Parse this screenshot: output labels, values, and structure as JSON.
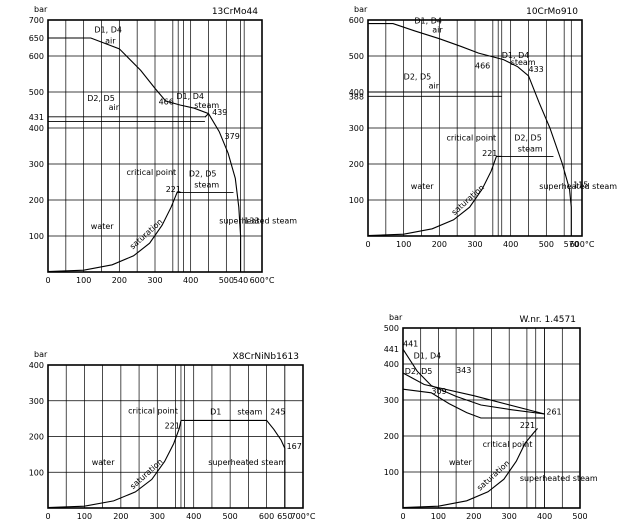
{
  "chart_data": [
    {
      "type": "line",
      "title": "13CrMo44",
      "ylabel": "bar",
      "xlim": [
        0,
        600
      ],
      "ylim": [
        0,
        700
      ],
      "x_ticks": [
        {
          "v": 0,
          "label": "0"
        },
        {
          "v": 100,
          "label": "100"
        },
        {
          "v": 200,
          "label": "200"
        },
        {
          "v": 300,
          "label": "300"
        },
        {
          "v": 400,
          "label": "400"
        },
        {
          "v": 500,
          "label": "500"
        },
        {
          "v": 540,
          "label": "540"
        },
        {
          "v": 600,
          "label": "600°C"
        }
      ],
      "y_ticks": [
        {
          "v": 100,
          "label": "100"
        },
        {
          "v": 200,
          "label": "200"
        },
        {
          "v": 300,
          "label": "300"
        },
        {
          "v": 400,
          "label": "400"
        },
        {
          "v": 431,
          "label": "431"
        },
        {
          "v": 500,
          "label": "500"
        },
        {
          "v": 600,
          "label": "600"
        },
        {
          "v": 650,
          "label": "650"
        },
        {
          "v": 700,
          "label": "700"
        }
      ],
      "grid_x": [
        0,
        50,
        100,
        150,
        200,
        250,
        300,
        350,
        400,
        450,
        500,
        550,
        600
      ],
      "grid_y": [
        0,
        100,
        200,
        300,
        400,
        500,
        600,
        700
      ],
      "extra_v": [
        365,
        380,
        540
      ],
      "series": [
        {
          "points": [
            [
              0,
              650
            ],
            [
              120,
              650
            ],
            [
              200,
              620
            ],
            [
              260,
              560
            ],
            [
              300,
              510
            ],
            [
              330,
              475
            ],
            [
              370,
              464
            ],
            [
              410,
              455
            ],
            [
              450,
              440
            ],
            [
              480,
              390
            ],
            [
              505,
              330
            ],
            [
              525,
              260
            ],
            [
              535,
              180
            ],
            [
              540,
              100
            ],
            [
              540,
              0
            ]
          ]
        },
        {
          "points": [
            [
              440,
              430
            ],
            [
              450,
              440
            ]
          ]
        }
      ],
      "saturation": [
        [
          0,
          1
        ],
        [
          100,
          5
        ],
        [
          180,
          20
        ],
        [
          240,
          45
        ],
        [
          285,
          80
        ],
        [
          320,
          130
        ],
        [
          345,
          180
        ],
        [
          362,
          221
        ],
        [
          374,
          221
        ]
      ],
      "hlines": [
        {
          "y": 431,
          "x1": 0,
          "x2": 440
        },
        {
          "y": 418,
          "x1": 0,
          "x2": 440
        },
        {
          "y": 221,
          "x1": 374,
          "x2": 520
        }
      ],
      "labels": [
        {
          "x": 130,
          "y": 665,
          "text": "D1, D4"
        },
        {
          "x": 160,
          "y": 635,
          "text": "air"
        },
        {
          "x": 110,
          "y": 475,
          "text": "D2, D5"
        },
        {
          "x": 170,
          "y": 450,
          "text": "air"
        },
        {
          "x": 310,
          "y": 465,
          "text": "466"
        },
        {
          "x": 360,
          "y": 480,
          "text": "D1, D4"
        },
        {
          "x": 410,
          "y": 455,
          "text": "steam"
        },
        {
          "x": 460,
          "y": 436,
          "text": "439"
        },
        {
          "x": 495,
          "y": 370,
          "text": "379"
        },
        {
          "x": 220,
          "y": 270,
          "text": "critical point"
        },
        {
          "x": 330,
          "y": 222,
          "text": "221"
        },
        {
          "x": 395,
          "y": 265,
          "text": "D2, D5"
        },
        {
          "x": 410,
          "y": 235,
          "text": "steam"
        },
        {
          "x": 480,
          "y": 135,
          "text": "superheated steam"
        },
        {
          "x": 120,
          "y": 120,
          "text": "water"
        },
        {
          "x": 550,
          "y": 135,
          "text": "133"
        }
      ],
      "sat_label": {
        "x": 280,
        "y": 100,
        "rot": -42,
        "text": "saturation"
      }
    },
    {
      "type": "line",
      "title": "10CrMo910",
      "ylabel": "bar",
      "xlim": [
        0,
        600
      ],
      "ylim": [
        0,
        600
      ],
      "x_ticks": [
        {
          "v": 0,
          "label": "0"
        },
        {
          "v": 100,
          "label": "100"
        },
        {
          "v": 200,
          "label": "200"
        },
        {
          "v": 300,
          "label": "300"
        },
        {
          "v": 400,
          "label": "400"
        },
        {
          "v": 500,
          "label": "500"
        },
        {
          "v": 570,
          "label": "570"
        },
        {
          "v": 600,
          "label": "600°C"
        }
      ],
      "y_ticks": [
        {
          "v": 100,
          "label": "100"
        },
        {
          "v": 200,
          "label": "200"
        },
        {
          "v": 300,
          "label": "300"
        },
        {
          "v": 388,
          "label": "388"
        },
        {
          "v": 400,
          "label": "400"
        },
        {
          "v": 500,
          "label": "500"
        },
        {
          "v": 600,
          "label": "600"
        }
      ],
      "grid_x": [
        0,
        50,
        100,
        150,
        200,
        250,
        300,
        350,
        400,
        450,
        500,
        550,
        600
      ],
      "grid_y": [
        0,
        100,
        200,
        300,
        400,
        500,
        600
      ],
      "extra_v": [
        365,
        375,
        570
      ],
      "series": [
        {
          "points": [
            [
              0,
              590
            ],
            [
              70,
              590
            ],
            [
              130,
              570
            ],
            [
              200,
              548
            ],
            [
              260,
              527
            ],
            [
              310,
              508
            ],
            [
              380,
              490
            ],
            [
              420,
              470
            ],
            [
              450,
              445
            ],
            [
              480,
              370
            ],
            [
              510,
              300
            ],
            [
              545,
              200
            ],
            [
              565,
              130
            ],
            [
              570,
              80
            ],
            [
              570,
              0
            ]
          ]
        }
      ],
      "saturation": [
        [
          0,
          1
        ],
        [
          100,
          5
        ],
        [
          180,
          20
        ],
        [
          240,
          45
        ],
        [
          285,
          80
        ],
        [
          320,
          130
        ],
        [
          345,
          180
        ],
        [
          360,
          221
        ],
        [
          375,
          221
        ]
      ],
      "hlines": [
        {
          "y": 400,
          "x1": 0,
          "x2": 375
        },
        {
          "y": 388,
          "x1": 0,
          "x2": 375
        },
        {
          "y": 221,
          "x1": 375,
          "x2": 520
        }
      ],
      "labels": [
        {
          "x": 130,
          "y": 590,
          "text": "D1, D4"
        },
        {
          "x": 180,
          "y": 565,
          "text": "air"
        },
        {
          "x": 300,
          "y": 465,
          "text": "466"
        },
        {
          "x": 375,
          "y": 495,
          "text": "D1, D4"
        },
        {
          "x": 400,
          "y": 475,
          "text": "steam"
        },
        {
          "x": 450,
          "y": 455,
          "text": "433"
        },
        {
          "x": 100,
          "y": 435,
          "text": "D2, D5"
        },
        {
          "x": 170,
          "y": 410,
          "text": "air"
        },
        {
          "x": 220,
          "y": 265,
          "text": "critical point"
        },
        {
          "x": 320,
          "y": 222,
          "text": "221"
        },
        {
          "x": 410,
          "y": 265,
          "text": "D2, D5"
        },
        {
          "x": 420,
          "y": 235,
          "text": "steam"
        },
        {
          "x": 480,
          "y": 130,
          "text": "superheated steam"
        },
        {
          "x": 120,
          "y": 130,
          "text": "water"
        },
        {
          "x": 575,
          "y": 135,
          "text": "115"
        }
      ],
      "sat_label": {
        "x": 285,
        "y": 95,
        "rot": -42,
        "text": "saturation"
      }
    },
    {
      "type": "line",
      "title": "X8CrNiNb1613",
      "ylabel": "bar",
      "xlim": [
        0,
        700
      ],
      "ylim": [
        0,
        400
      ],
      "x_ticks": [
        {
          "v": 0,
          "label": "0"
        },
        {
          "v": 100,
          "label": "100"
        },
        {
          "v": 200,
          "label": "200"
        },
        {
          "v": 300,
          "label": "300"
        },
        {
          "v": 400,
          "label": "400"
        },
        {
          "v": 500,
          "label": "500"
        },
        {
          "v": 600,
          "label": "600"
        },
        {
          "v": 650,
          "label": "650"
        },
        {
          "v": 700,
          "label": "700°C"
        }
      ],
      "y_ticks": [
        {
          "v": 100,
          "label": "100"
        },
        {
          "v": 200,
          "label": "200"
        },
        {
          "v": 300,
          "label": "300"
        },
        {
          "v": 400,
          "label": "400"
        }
      ],
      "grid_x": [
        0,
        50,
        100,
        150,
        200,
        250,
        300,
        350,
        400,
        450,
        500,
        550,
        600,
        650,
        700
      ],
      "grid_y": [
        0,
        100,
        200,
        300,
        400
      ],
      "extra_v": [
        365,
        375,
        650
      ],
      "series": [
        {
          "points": [
            [
              365,
              245
            ],
            [
              600,
              245
            ],
            [
              620,
              220
            ],
            [
              640,
              190
            ],
            [
              650,
              167
            ],
            [
              650,
              0
            ]
          ]
        }
      ],
      "saturation": [
        [
          0,
          1
        ],
        [
          100,
          5
        ],
        [
          180,
          20
        ],
        [
          240,
          45
        ],
        [
          285,
          80
        ],
        [
          320,
          130
        ],
        [
          345,
          180
        ],
        [
          360,
          221
        ],
        [
          365,
          245
        ]
      ],
      "hlines": [],
      "labels": [
        {
          "x": 220,
          "y": 265,
          "text": "critical point"
        },
        {
          "x": 320,
          "y": 222,
          "text": "221"
        },
        {
          "x": 445,
          "y": 262,
          "text": "D1"
        },
        {
          "x": 520,
          "y": 262,
          "text": "steam"
        },
        {
          "x": 610,
          "y": 262,
          "text": "245"
        },
        {
          "x": 655,
          "y": 165,
          "text": "167"
        },
        {
          "x": 120,
          "y": 120,
          "text": "water"
        },
        {
          "x": 440,
          "y": 120,
          "text": "superheated steam"
        }
      ],
      "sat_label": {
        "x": 275,
        "y": 90,
        "rot": -42,
        "text": "saturation"
      }
    },
    {
      "type": "line",
      "title": "W.nr. 1.4571",
      "ylabel": "bar",
      "xlim": [
        0,
        500
      ],
      "ylim": [
        0,
        500
      ],
      "x_ticks": [
        {
          "v": 0,
          "label": "0"
        },
        {
          "v": 100,
          "label": "100"
        },
        {
          "v": 200,
          "label": "200"
        },
        {
          "v": 300,
          "label": "300"
        },
        {
          "v": 400,
          "label": "400"
        },
        {
          "v": 500,
          "label": "500"
        }
      ],
      "y_ticks": [
        {
          "v": 100,
          "label": "100"
        },
        {
          "v": 200,
          "label": "200"
        },
        {
          "v": 300,
          "label": "300"
        },
        {
          "v": 400,
          "label": "400"
        },
        {
          "v": 441,
          "label": "441"
        },
        {
          "v": 500,
          "label": "500"
        }
      ],
      "grid_x": [
        0,
        50,
        100,
        150,
        200,
        250,
        300,
        350,
        400,
        450,
        500
      ],
      "grid_y": [
        0,
        100,
        200,
        300,
        400,
        500
      ],
      "extra_v": [
        375,
        400
      ],
      "series": [
        {
          "points": [
            [
              0,
              441
            ],
            [
              40,
              380
            ],
            [
              80,
              340
            ],
            [
              150,
              310
            ],
            [
              220,
              286
            ],
            [
              300,
              274
            ],
            [
              400,
              261
            ]
          ]
        },
        {
          "points": [
            [
              0,
              375
            ],
            [
              60,
              343
            ],
            [
              200,
              312
            ],
            [
              400,
              261
            ]
          ]
        },
        {
          "points": [
            [
              0,
              330
            ],
            [
              80,
              320
            ],
            [
              130,
              290
            ],
            [
              180,
              265
            ],
            [
              220,
              250
            ],
            [
              400,
              250
            ]
          ]
        }
      ],
      "saturation": [
        [
          0,
          1
        ],
        [
          100,
          5
        ],
        [
          180,
          20
        ],
        [
          240,
          45
        ],
        [
          285,
          80
        ],
        [
          320,
          130
        ],
        [
          345,
          180
        ],
        [
          370,
          210
        ],
        [
          380,
          221
        ]
      ],
      "hlines": [],
      "labels": [
        {
          "x": 0,
          "y": 448,
          "text": "441"
        },
        {
          "x": 30,
          "y": 415,
          "text": "D1, D4"
        },
        {
          "x": 5,
          "y": 372,
          "text": "D2, D5"
        },
        {
          "x": 150,
          "y": 375,
          "text": "343"
        },
        {
          "x": 80,
          "y": 316,
          "text": "309"
        },
        {
          "x": 405,
          "y": 260,
          "text": "261"
        },
        {
          "x": 330,
          "y": 222,
          "text": "221"
        },
        {
          "x": 225,
          "y": 170,
          "text": "critical point"
        },
        {
          "x": 130,
          "y": 120,
          "text": "water"
        },
        {
          "x": 330,
          "y": 75,
          "text": "superheated steam"
        }
      ],
      "sat_label": {
        "x": 260,
        "y": 85,
        "rot": -42,
        "text": "saturation"
      }
    }
  ]
}
